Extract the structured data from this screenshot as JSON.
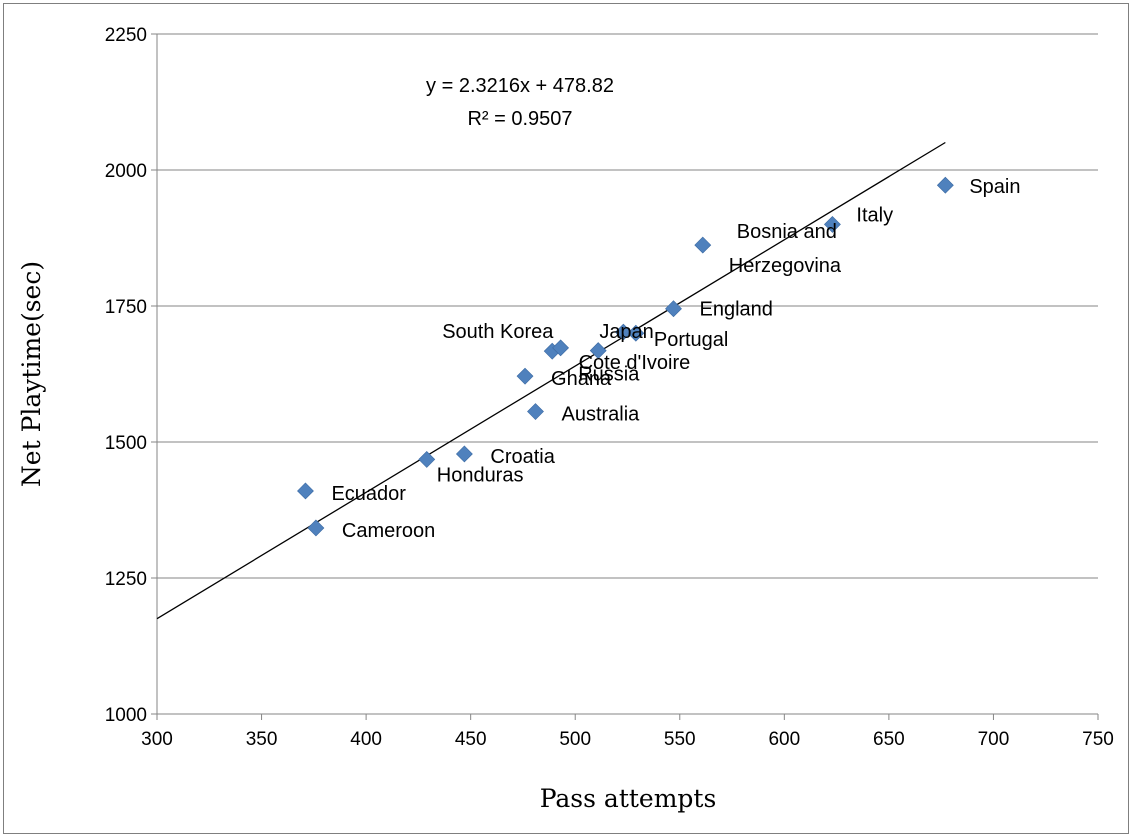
{
  "chart_data": {
    "type": "scatter",
    "title": "",
    "xlabel": "Pass attempts",
    "ylabel": "Net Playtime(sec)",
    "xlim": [
      300,
      750
    ],
    "ylim": [
      1000,
      2250
    ],
    "xticks": [
      300,
      350,
      400,
      450,
      500,
      550,
      600,
      650,
      700,
      750
    ],
    "yticks": [
      1000,
      1250,
      1500,
      1750,
      2000,
      2250
    ],
    "grid": "horizontal",
    "legend": "none",
    "marker": "diamond",
    "marker_color": "#4f81bd",
    "points": [
      {
        "label": "Spain",
        "x": 677,
        "y": 1972
      },
      {
        "label": "Italy",
        "x": 623,
        "y": 1900
      },
      {
        "label": "Bosnia and Herzegovina",
        "x": 561,
        "y": 1862
      },
      {
        "label": "England",
        "x": 547,
        "y": 1745
      },
      {
        "label": "Japan",
        "x": 523,
        "y": 1702
      },
      {
        "label": "Portugal",
        "x": 529,
        "y": 1700
      },
      {
        "label": "South Korea",
        "x": 489,
        "y": 1667
      },
      {
        "label": "Cote d'Ivoire",
        "x": 493,
        "y": 1673
      },
      {
        "label": "Russia",
        "x": 511,
        "y": 1668
      },
      {
        "label": "Ghana",
        "x": 476,
        "y": 1621
      },
      {
        "label": "Australia",
        "x": 481,
        "y": 1556
      },
      {
        "label": "Croatia",
        "x": 447,
        "y": 1478
      },
      {
        "label": "Honduras",
        "x": 429,
        "y": 1468
      },
      {
        "label": "Ecuador",
        "x": 371,
        "y": 1410
      },
      {
        "label": "Cameroon",
        "x": 376,
        "y": 1342
      }
    ],
    "trendline": {
      "type": "linear",
      "slope": 2.3216,
      "intercept": 478.82,
      "x_range": [
        300,
        677
      ],
      "equation": "y = 2.3216x + 478.82",
      "r_squared": "R² = 0.9507",
      "color": "#000000"
    }
  }
}
